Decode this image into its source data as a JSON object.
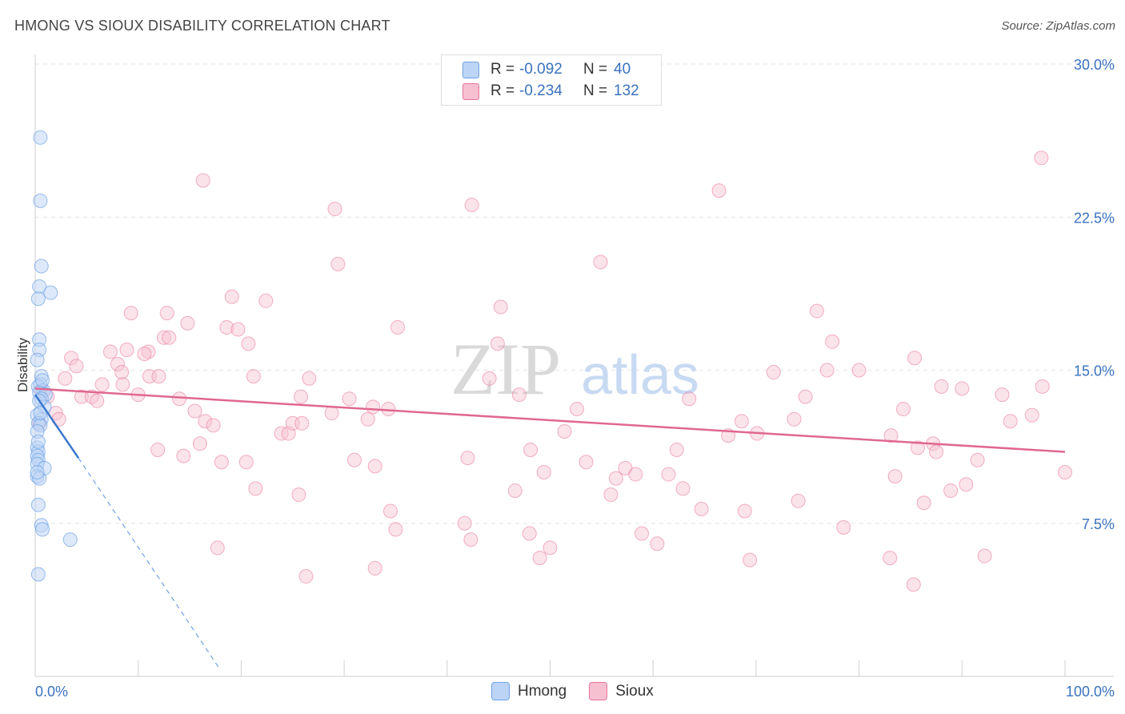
{
  "title": "HMONG VS SIOUX DISABILITY CORRELATION CHART",
  "source": "Source: ZipAtlas.com",
  "watermark": {
    "zip": "ZIP",
    "atlas": "atlas"
  },
  "colors": {
    "hmong": "#6fa3e6",
    "hmong_fill": "#bcd4f5",
    "sioux": "#e8739b",
    "sioux_fill": "#f6c0d1",
    "axis_text": "#3a72c0"
  },
  "legend": {
    "hmong": {
      "r_label": "R =",
      "r_value": "-0.092",
      "n_label": "N =",
      "n_value": "40"
    },
    "sioux": {
      "r_label": "R =",
      "r_value": "-0.234",
      "n_label": "N =",
      "n_value": "132"
    }
  },
  "bottom_legend": {
    "hmong": "Hmong",
    "sioux": "Sioux"
  },
  "chart_data": {
    "type": "scatter",
    "title": "HMONG VS SIOUX DISABILITY CORRELATION CHART",
    "xlabel": "",
    "ylabel": "Disability",
    "xlim": [
      0,
      100
    ],
    "ylim": [
      0,
      30
    ],
    "x_tick_labels": [
      "0.0%",
      "100.0%"
    ],
    "y_ticks": [
      7.5,
      15.0,
      22.5,
      30.0
    ],
    "y_tick_labels": [
      "7.5%",
      "15.0%",
      "22.5%",
      "30.0%"
    ],
    "series": [
      {
        "name": "Hmong",
        "points": [
          [
            0.5,
            26.4
          ],
          [
            0.5,
            23.3
          ],
          [
            0.6,
            20.1
          ],
          [
            0.4,
            19.1
          ],
          [
            1.5,
            18.8
          ],
          [
            0.3,
            18.5
          ],
          [
            0.4,
            16.5
          ],
          [
            0.4,
            16.0
          ],
          [
            0.2,
            15.5
          ],
          [
            0.6,
            14.7
          ],
          [
            0.5,
            14.3
          ],
          [
            0.3,
            14.2
          ],
          [
            0.8,
            14.0
          ],
          [
            0.4,
            13.9
          ],
          [
            1.0,
            13.8
          ],
          [
            0.6,
            13.6
          ],
          [
            0.9,
            13.2
          ],
          [
            0.2,
            12.8
          ],
          [
            0.6,
            12.6
          ],
          [
            0.3,
            12.4
          ],
          [
            0.5,
            12.3
          ],
          [
            0.2,
            12.0
          ],
          [
            0.2,
            11.2
          ],
          [
            0.3,
            11.0
          ],
          [
            0.2,
            10.8
          ],
          [
            0.3,
            10.6
          ],
          [
            0.2,
            10.4
          ],
          [
            0.9,
            10.2
          ],
          [
            0.2,
            9.8
          ],
          [
            0.4,
            9.7
          ],
          [
            0.3,
            8.4
          ],
          [
            0.6,
            7.4
          ],
          [
            0.7,
            7.2
          ],
          [
            3.4,
            6.7
          ],
          [
            0.3,
            5.0
          ],
          [
            0.4,
            13.5
          ],
          [
            0.5,
            12.9
          ],
          [
            0.3,
            11.5
          ],
          [
            0.7,
            14.5
          ],
          [
            0.2,
            10.0
          ]
        ],
        "trend": {
          "x0": 0,
          "y0": 13.8,
          "x1": 4.2,
          "y1": 10.7,
          "dashed_to_x": 18.0,
          "dashed_to_y": 0.3
        }
      },
      {
        "name": "Sioux",
        "points": [
          [
            16.3,
            24.3
          ],
          [
            29.1,
            22.9
          ],
          [
            42.4,
            23.1
          ],
          [
            66.4,
            23.8
          ],
          [
            97.7,
            25.4
          ],
          [
            29.4,
            20.2
          ],
          [
            54.9,
            20.3
          ],
          [
            19.1,
            18.6
          ],
          [
            22.4,
            18.4
          ],
          [
            45.2,
            18.1
          ],
          [
            75.9,
            17.9
          ],
          [
            9.3,
            17.8
          ],
          [
            12.8,
            17.8
          ],
          [
            14.8,
            17.3
          ],
          [
            18.6,
            17.1
          ],
          [
            19.7,
            17.0
          ],
          [
            35.2,
            17.1
          ],
          [
            12.5,
            16.6
          ],
          [
            13.0,
            16.6
          ],
          [
            20.7,
            16.3
          ],
          [
            44.9,
            16.3
          ],
          [
            77.4,
            16.4
          ],
          [
            8.9,
            16.0
          ],
          [
            11.0,
            15.9
          ],
          [
            7.3,
            15.9
          ],
          [
            3.5,
            15.6
          ],
          [
            4.0,
            15.2
          ],
          [
            8.0,
            15.3
          ],
          [
            10.6,
            15.8
          ],
          [
            85.4,
            15.6
          ],
          [
            8.4,
            14.9
          ],
          [
            11.1,
            14.7
          ],
          [
            12.0,
            14.7
          ],
          [
            2.9,
            14.6
          ],
          [
            21.2,
            14.7
          ],
          [
            26.6,
            14.6
          ],
          [
            44.1,
            14.6
          ],
          [
            71.7,
            14.9
          ],
          [
            76.9,
            15.0
          ],
          [
            80.0,
            15.0
          ],
          [
            6.5,
            14.3
          ],
          [
            8.5,
            14.3
          ],
          [
            88.0,
            14.2
          ],
          [
            97.8,
            14.2
          ],
          [
            0.6,
            14.0
          ],
          [
            1.2,
            13.7
          ],
          [
            4.5,
            13.7
          ],
          [
            5.5,
            13.7
          ],
          [
            6.0,
            13.5
          ],
          [
            10.0,
            13.8
          ],
          [
            14.0,
            13.6
          ],
          [
            25.8,
            13.7
          ],
          [
            30.5,
            13.6
          ],
          [
            47.0,
            13.8
          ],
          [
            63.5,
            13.6
          ],
          [
            74.8,
            13.7
          ],
          [
            93.9,
            13.8
          ],
          [
            90.0,
            14.1
          ],
          [
            2.0,
            12.9
          ],
          [
            15.5,
            13.0
          ],
          [
            28.8,
            12.9
          ],
          [
            32.8,
            13.2
          ],
          [
            34.3,
            13.1
          ],
          [
            52.6,
            13.1
          ],
          [
            84.3,
            13.1
          ],
          [
            2.3,
            12.6
          ],
          [
            16.5,
            12.5
          ],
          [
            17.3,
            12.3
          ],
          [
            23.9,
            11.9
          ],
          [
            24.6,
            11.9
          ],
          [
            25.0,
            12.4
          ],
          [
            25.9,
            12.4
          ],
          [
            32.3,
            12.6
          ],
          [
            68.6,
            12.5
          ],
          [
            73.7,
            12.6
          ],
          [
            94.7,
            12.5
          ],
          [
            96.8,
            12.8
          ],
          [
            51.4,
            12.0
          ],
          [
            67.3,
            11.8
          ],
          [
            70.1,
            11.9
          ],
          [
            83.1,
            11.8
          ],
          [
            16.0,
            11.4
          ],
          [
            11.9,
            11.1
          ],
          [
            14.4,
            10.8
          ],
          [
            18.1,
            10.5
          ],
          [
            20.5,
            10.5
          ],
          [
            31.0,
            10.6
          ],
          [
            33.0,
            10.3
          ],
          [
            42.0,
            10.7
          ],
          [
            48.1,
            11.1
          ],
          [
            53.5,
            10.5
          ],
          [
            57.3,
            10.2
          ],
          [
            62.3,
            11.1
          ],
          [
            85.7,
            11.2
          ],
          [
            87.2,
            11.4
          ],
          [
            87.5,
            11.0
          ],
          [
            91.5,
            10.6
          ],
          [
            49.4,
            10.0
          ],
          [
            56.4,
            9.7
          ],
          [
            58.3,
            9.9
          ],
          [
            61.5,
            9.9
          ],
          [
            83.5,
            9.8
          ],
          [
            100.0,
            10.0
          ],
          [
            21.4,
            9.2
          ],
          [
            25.6,
            8.9
          ],
          [
            46.6,
            9.1
          ],
          [
            55.9,
            8.9
          ],
          [
            62.9,
            9.2
          ],
          [
            74.1,
            8.6
          ],
          [
            86.3,
            8.5
          ],
          [
            88.9,
            9.1
          ],
          [
            90.4,
            9.4
          ],
          [
            34.5,
            8.1
          ],
          [
            64.7,
            8.2
          ],
          [
            68.9,
            8.1
          ],
          [
            35.0,
            7.2
          ],
          [
            41.7,
            7.5
          ],
          [
            48.0,
            7.0
          ],
          [
            58.9,
            7.0
          ],
          [
            78.5,
            7.3
          ],
          [
            17.7,
            6.3
          ],
          [
            42.3,
            6.7
          ],
          [
            50.0,
            6.3
          ],
          [
            49.0,
            5.8
          ],
          [
            60.4,
            6.5
          ],
          [
            69.4,
            5.7
          ],
          [
            83.0,
            5.8
          ],
          [
            92.2,
            5.9
          ],
          [
            33.0,
            5.3
          ],
          [
            26.3,
            4.9
          ],
          [
            85.3,
            4.5
          ],
          [
            0.4,
            12.4
          ]
        ],
        "trend": {
          "x0": 0,
          "y0": 14.1,
          "x1": 100,
          "y1": 11.0
        }
      }
    ]
  }
}
